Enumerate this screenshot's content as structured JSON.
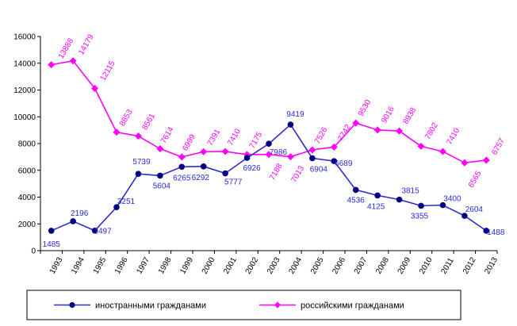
{
  "chart_data": {
    "type": "line",
    "title": "",
    "xlabel": "",
    "ylabel": "",
    "x": [
      "1993",
      "1994",
      "1995",
      "1996",
      "1997",
      "1998",
      "1999",
      "2000",
      "2001",
      "2002",
      "2003",
      "2004",
      "2005",
      "2006",
      "2007",
      "2008",
      "2009",
      "2010",
      "2011",
      "2012",
      "2013"
    ],
    "ylim": [
      0,
      16000
    ],
    "yticks": [
      0,
      2000,
      4000,
      6000,
      8000,
      10000,
      12000,
      14000,
      16000
    ],
    "grid": false,
    "legend_position": "bottom",
    "series": [
      {
        "name": "иностранными гражданами",
        "color": "#2a2ad6",
        "marker_color": "#000080",
        "values": [
          1485,
          2196,
          1497,
          3251,
          5739,
          5604,
          6265,
          6292,
          5777,
          6926,
          7986,
          9419,
          6904,
          6689,
          4536,
          4125,
          3815,
          3355,
          3400,
          2604,
          1488
        ]
      },
      {
        "name": "российскими гражданами",
        "color": "#ff00ff",
        "marker_color": "#ff00ff",
        "values": [
          13888,
          14179,
          12115,
          8853,
          8561,
          7614,
          6999,
          7391,
          7410,
          7175,
          7188,
          7013,
          7526,
          7742,
          9530,
          9016,
          8938,
          7802,
          7410,
          6565,
          6757
        ]
      }
    ]
  }
}
